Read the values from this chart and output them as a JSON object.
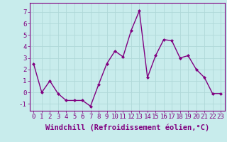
{
  "x": [
    0,
    1,
    2,
    3,
    4,
    5,
    6,
    7,
    8,
    9,
    10,
    11,
    12,
    13,
    14,
    15,
    16,
    17,
    18,
    19,
    20,
    21,
    22,
    23
  ],
  "y": [
    2.5,
    0.0,
    1.0,
    -0.1,
    -0.7,
    -0.7,
    -0.7,
    -1.2,
    0.7,
    2.5,
    3.6,
    3.1,
    5.4,
    7.1,
    1.3,
    3.2,
    4.6,
    4.5,
    3.0,
    3.2,
    2.0,
    1.3,
    -0.1,
    -0.1
  ],
  "line_color": "#800080",
  "marker": "D",
  "marker_size": 2.0,
  "background_color": "#c8ecec",
  "grid_color": "#b0d8d8",
  "xlabel": "Windchill (Refroidissement éolien,°C)",
  "xlabel_fontsize": 7.5,
  "xlim": [
    -0.5,
    23.5
  ],
  "ylim": [
    -1.6,
    7.8
  ],
  "yticks": [
    -1,
    0,
    1,
    2,
    3,
    4,
    5,
    6,
    7
  ],
  "xticks": [
    0,
    1,
    2,
    3,
    4,
    5,
    6,
    7,
    8,
    9,
    10,
    11,
    12,
    13,
    14,
    15,
    16,
    17,
    18,
    19,
    20,
    21,
    22,
    23
  ],
  "tick_fontsize": 6.5,
  "label_color": "#800080",
  "spine_color": "#800080",
  "linewidth": 1.0
}
